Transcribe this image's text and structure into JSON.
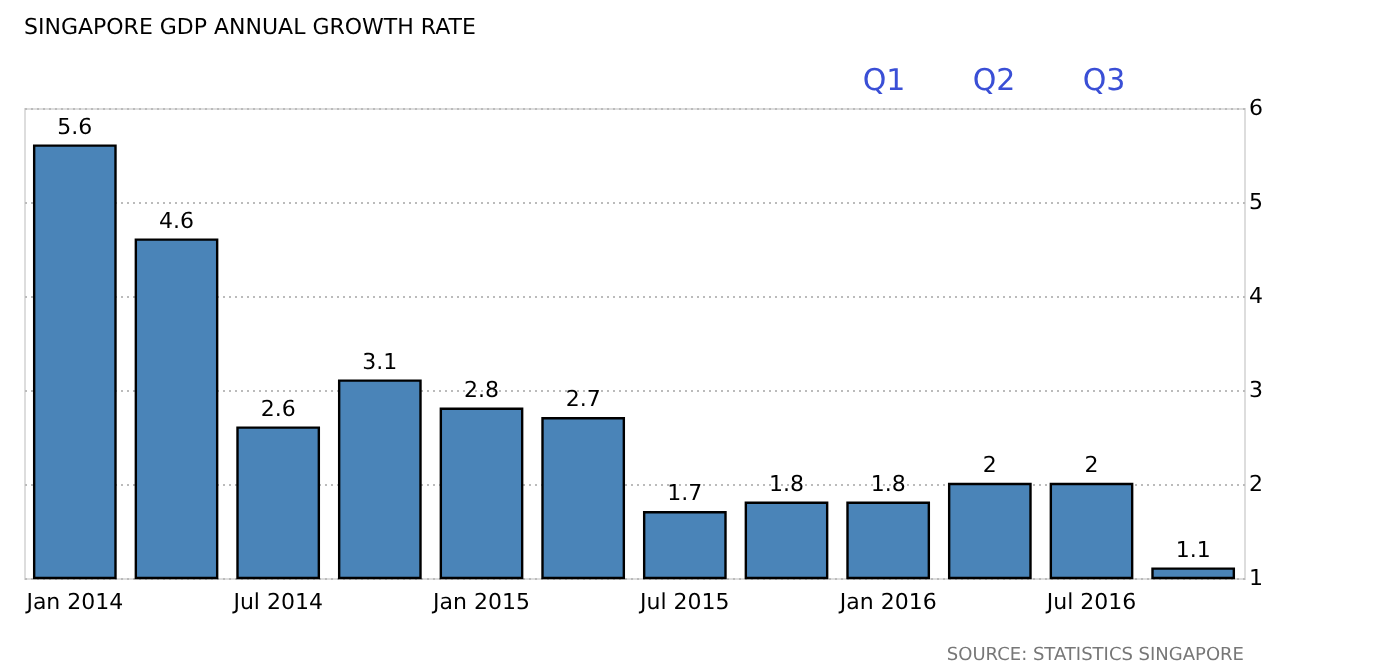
{
  "chart_data": {
    "type": "bar",
    "title": "SINGAPORE GDP ANNUAL GROWTH RATE",
    "categories": [
      "Jan 2014",
      null,
      "Jul 2014",
      null,
      "Jan 2015",
      null,
      "Jul 2015",
      null,
      "Jan 2016",
      null,
      "Jul 2016",
      null
    ],
    "values": [
      5.6,
      4.6,
      2.6,
      3.1,
      2.8,
      2.7,
      1.7,
      1.8,
      1.8,
      2,
      2,
      1.1
    ],
    "color": "#4a84b8",
    "ylim": [
      1,
      6
    ],
    "yticks": [
      1,
      2,
      3,
      4,
      5,
      6
    ],
    "grid": "y",
    "data_labels": true,
    "annotations": [
      "Q1",
      "Q2",
      "Q3",
      "SOURCE: STATISTICS SINGAPORE"
    ]
  }
}
